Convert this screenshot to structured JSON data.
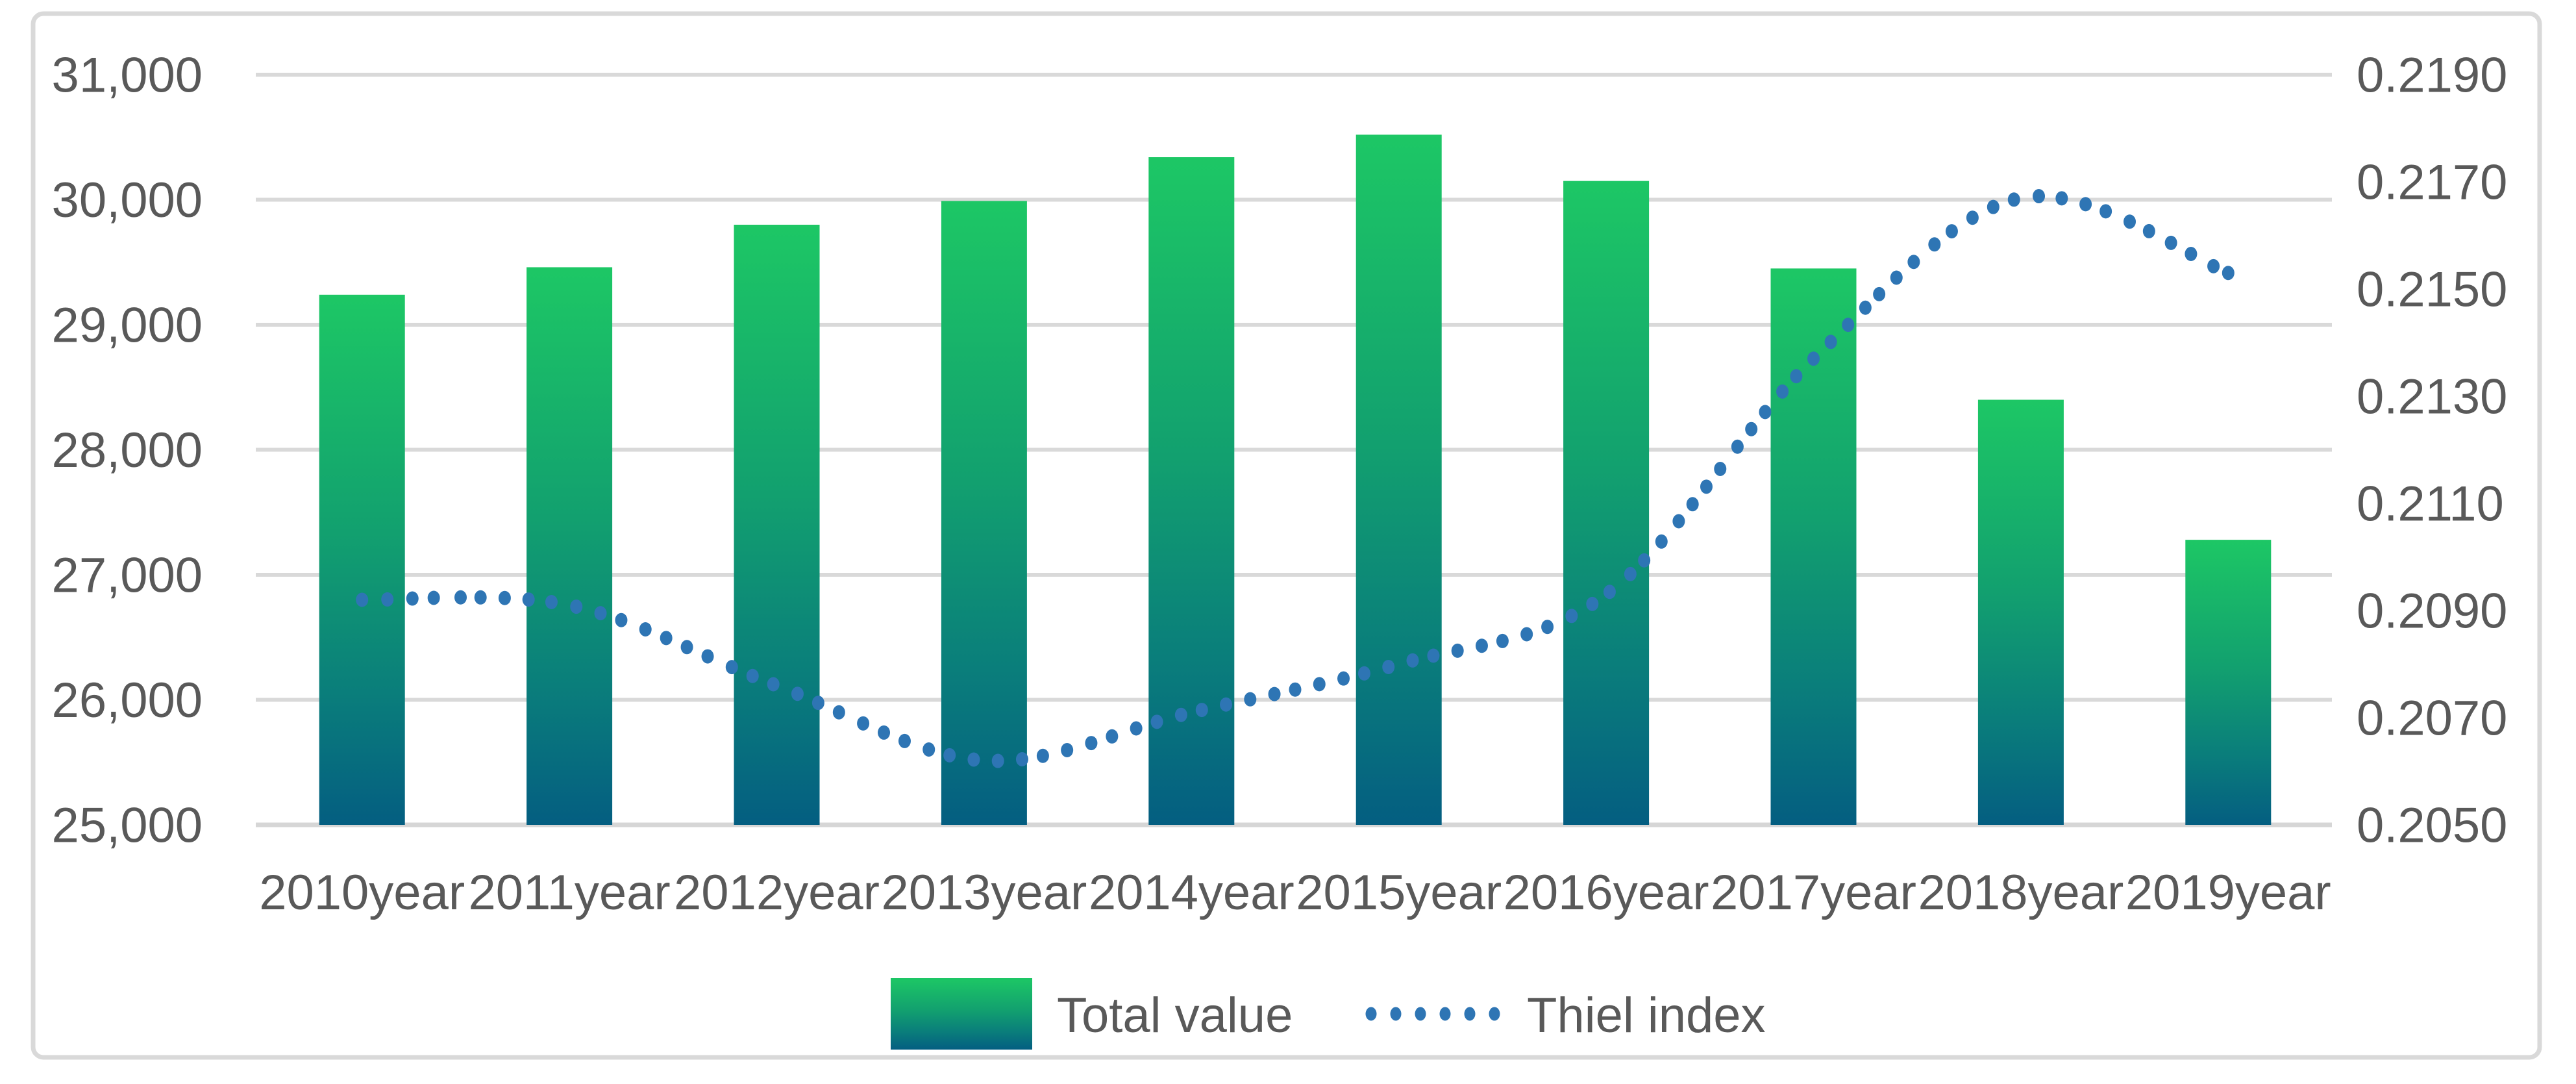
{
  "chart_data": {
    "type": "bar",
    "subtype": "combo-bar-line",
    "categories": [
      "2010year",
      "2011year",
      "2012year",
      "2013year",
      "2014year",
      "2015year",
      "2016year",
      "2017year",
      "2018year",
      "2019year"
    ],
    "series": [
      {
        "name": "Total value",
        "type": "bar",
        "axis": "left",
        "values": [
          29240,
          29460,
          29800,
          29990,
          30340,
          30520,
          30150,
          29450,
          28400,
          27280
        ]
      },
      {
        "name": "Thiel index",
        "type": "line",
        "line_style": "dotted",
        "axis": "right",
        "values": [
          0.2092,
          0.2091,
          0.2076,
          0.2062,
          0.2071,
          0.208,
          0.2093,
          0.2137,
          0.2167,
          0.2153
        ]
      }
    ],
    "title": "",
    "xlabel": "",
    "ylabel": "",
    "left_axis": {
      "min": 25000,
      "max": 31000,
      "step": 1000,
      "tick_labels": [
        "31,000",
        "30,000",
        "29,000",
        "28,000",
        "27,000",
        "26,000",
        "25,000"
      ]
    },
    "right_axis": {
      "min": 0.205,
      "max": 0.219,
      "step": 0.002,
      "tick_labels": [
        "0.2190",
        "0.2170",
        "0.2150",
        "0.2130",
        "0.2110",
        "0.2090",
        "0.2070",
        "0.2050"
      ]
    },
    "grid": true,
    "legend_position": "bottom"
  },
  "legend": {
    "total_label": "Total value",
    "thiel_label": "Thiel index"
  },
  "colors": {
    "bar_gradient_top": "#1DC765",
    "bar_gradient_mid": "#12A06F",
    "bar_gradient_low": "#0A7E7B",
    "bar_gradient_bottom": "#045E81",
    "line_dot": "#2E75B4",
    "gridline": "#D9D9D9",
    "axis_line": "#D6D6D6",
    "frame_border": "#D9D9D9",
    "text": "#595959",
    "background": "#FFFFFF"
  }
}
